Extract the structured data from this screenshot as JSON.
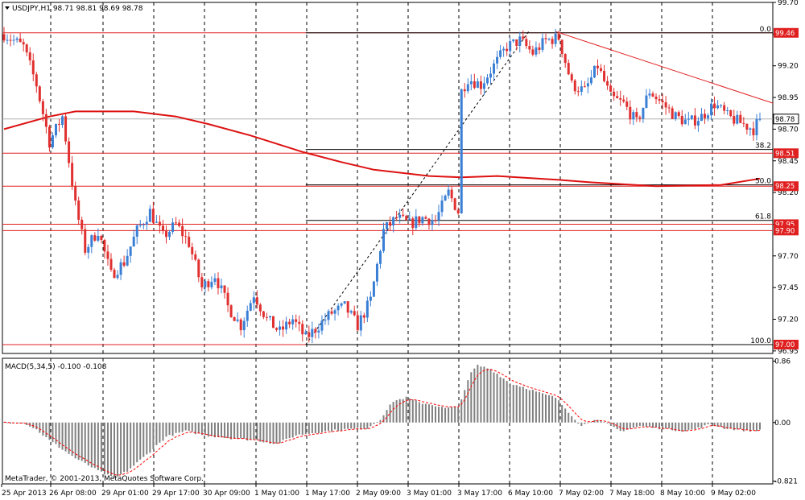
{
  "window": {
    "symbol_info": "USDJPY,H1  98.71 98.81 98.69 98.78",
    "macd_info": "MACD(5,34,5) -0.100 -0.108",
    "copyright": "MetaTrader, © 2001-2013, MetaQuotes Software Corp."
  },
  "colors": {
    "bull": "#3a7fd5",
    "bear": "#e03030",
    "level_line": "#e02020",
    "ma": "#dd1111",
    "grid": "#000000",
    "histogram": "#808080",
    "signal": "#ff0000",
    "tag_bg": "#e02020"
  },
  "chart_data": [
    {
      "type": "candlestick",
      "title": "USDJPY,H1",
      "price_axis_ticks": [
        "99.70",
        "99.45",
        "99.20",
        "98.95",
        "98.70",
        "98.45",
        "98.20",
        "97.95",
        "97.70",
        "97.45",
        "97.20",
        "96.95"
      ],
      "ylim": [
        96.93,
        99.7
      ],
      "time_axis_labels": [
        "25 Apr 2013",
        "26 Apr 08:00",
        "29 Apr 01:00",
        "29 Apr 17:00",
        "30 Apr 09:00",
        "1 May 01:00",
        "1 May 17:00",
        "2 May 09:00",
        "3 May 01:00",
        "3 May 17:00",
        "6 May 10:00",
        "7 May 02:00",
        "7 May 18:00",
        "8 May 10:00",
        "9 May 02:00"
      ],
      "current_price": 98.78,
      "current_price_tag": "98.78",
      "key_prices": [
        {
          "price": 99.46,
          "tag": "99.46"
        },
        {
          "price": 98.51,
          "tag": "98.51"
        },
        {
          "price": 98.25,
          "tag": "98.25"
        },
        {
          "price": 97.95,
          "tag": "97.95"
        },
        {
          "price": 97.9,
          "tag": "97.90"
        },
        {
          "price": 97.0,
          "tag": "97.00"
        }
      ],
      "fibonacci_levels": [
        {
          "label": "0.0",
          "price": 99.46
        },
        {
          "label": "38.2",
          "price": 98.54
        },
        {
          "label": "50.0",
          "price": 98.26
        },
        {
          "label": "61.8",
          "price": 97.98
        },
        {
          "label": "100.0",
          "price": 97.0
        }
      ],
      "anchors": [
        [
          0,
          99.45
        ],
        [
          6,
          99.35
        ],
        [
          10,
          99.05
        ],
        [
          14,
          98.6
        ],
        [
          18,
          98.8
        ],
        [
          22,
          98.1
        ],
        [
          25,
          97.75
        ],
        [
          29,
          97.9
        ],
        [
          33,
          97.55
        ],
        [
          37,
          97.65
        ],
        [
          41,
          97.9
        ],
        [
          45,
          98.05
        ],
        [
          49,
          97.85
        ],
        [
          53,
          97.95
        ],
        [
          57,
          97.8
        ],
        [
          61,
          97.45
        ],
        [
          65,
          97.55
        ],
        [
          69,
          97.3
        ],
        [
          73,
          97.15
        ],
        [
          77,
          97.4
        ],
        [
          81,
          97.2
        ],
        [
          85,
          97.1
        ],
        [
          89,
          97.2
        ],
        [
          93,
          97.05
        ],
        [
          97,
          97.15
        ],
        [
          101,
          97.25
        ],
        [
          105,
          97.3
        ],
        [
          109,
          97.15
        ],
        [
          113,
          97.35
        ],
        [
          117,
          97.9
        ],
        [
          121,
          98.0
        ],
        [
          125,
          97.95
        ],
        [
          129,
          98.0
        ],
        [
          133,
          97.98
        ],
        [
          137,
          98.2
        ],
        [
          140,
          98.05
        ],
        [
          141,
          99.0
        ],
        [
          143,
          99.1
        ],
        [
          147,
          99.05
        ],
        [
          151,
          99.2
        ],
        [
          155,
          99.35
        ],
        [
          159,
          99.4
        ],
        [
          163,
          99.3
        ],
        [
          167,
          99.4
        ],
        [
          171,
          99.42
        ],
        [
          175,
          99.05
        ],
        [
          179,
          99.0
        ],
        [
          183,
          99.2
        ],
        [
          187,
          98.95
        ],
        [
          191,
          98.9
        ],
        [
          195,
          98.75
        ],
        [
          199,
          99.0
        ],
        [
          203,
          98.9
        ],
        [
          207,
          98.8
        ],
        [
          211,
          98.75
        ],
        [
          215,
          98.8
        ],
        [
          219,
          98.9
        ],
        [
          223,
          98.8
        ],
        [
          227,
          98.75
        ],
        [
          231,
          98.7
        ],
        [
          233,
          98.78
        ]
      ],
      "moving_average": [
        [
          0,
          98.7
        ],
        [
          14,
          98.8
        ],
        [
          22,
          98.84
        ],
        [
          40,
          98.84
        ],
        [
          53,
          98.8
        ],
        [
          63,
          98.74
        ],
        [
          76,
          98.65
        ],
        [
          92,
          98.52
        ],
        [
          104,
          98.44
        ],
        [
          114,
          98.38
        ],
        [
          131,
          98.33
        ],
        [
          141,
          98.32
        ],
        [
          152,
          98.33
        ],
        [
          171,
          98.3
        ],
        [
          181,
          98.28
        ],
        [
          201,
          98.25
        ],
        [
          221,
          98.26
        ],
        [
          233,
          98.31
        ]
      ],
      "trendline": {
        "from": [
          170,
          99.47
        ],
        "to": [
          240,
          98.88
        ]
      },
      "fib_drawn_line": {
        "from": [
          93,
          97.0
        ],
        "to": [
          162,
          99.48
        ]
      }
    },
    {
      "type": "histogram",
      "title": "MACD(5,34,5)",
      "value_axis_ticks": [
        "0.86",
        "0.00",
        "-0.821"
      ],
      "ylim": [
        -0.86,
        0.9
      ],
      "macd_value": -0.1,
      "signal_value": -0.108,
      "anchors": [
        [
          0,
          0.0
        ],
        [
          6,
          0.0
        ],
        [
          10,
          -0.1
        ],
        [
          14,
          -0.25
        ],
        [
          22,
          -0.5
        ],
        [
          30,
          -0.7
        ],
        [
          34,
          -0.78
        ],
        [
          38,
          -0.68
        ],
        [
          44,
          -0.45
        ],
        [
          50,
          -0.2
        ],
        [
          56,
          -0.12
        ],
        [
          62,
          -0.18
        ],
        [
          70,
          -0.22
        ],
        [
          78,
          -0.25
        ],
        [
          84,
          -0.3
        ],
        [
          90,
          -0.18
        ],
        [
          96,
          -0.14
        ],
        [
          104,
          -0.1
        ],
        [
          112,
          -0.08
        ],
        [
          116,
          0.05
        ],
        [
          120,
          0.3
        ],
        [
          124,
          0.35
        ],
        [
          128,
          0.28
        ],
        [
          132,
          0.25
        ],
        [
          136,
          0.2
        ],
        [
          140,
          0.22
        ],
        [
          144,
          0.7
        ],
        [
          146,
          0.8
        ],
        [
          150,
          0.75
        ],
        [
          156,
          0.55
        ],
        [
          160,
          0.5
        ],
        [
          166,
          0.4
        ],
        [
          170,
          0.35
        ],
        [
          174,
          0.15
        ],
        [
          178,
          -0.05
        ],
        [
          182,
          0.05
        ],
        [
          186,
          -0.02
        ],
        [
          190,
          -0.12
        ],
        [
          196,
          -0.05
        ],
        [
          202,
          -0.08
        ],
        [
          206,
          -0.1
        ],
        [
          210,
          -0.12
        ],
        [
          214,
          -0.08
        ],
        [
          218,
          -0.02
        ],
        [
          222,
          -0.08
        ],
        [
          226,
          -0.1
        ],
        [
          230,
          -0.12
        ],
        [
          233,
          -0.1
        ]
      ]
    }
  ]
}
